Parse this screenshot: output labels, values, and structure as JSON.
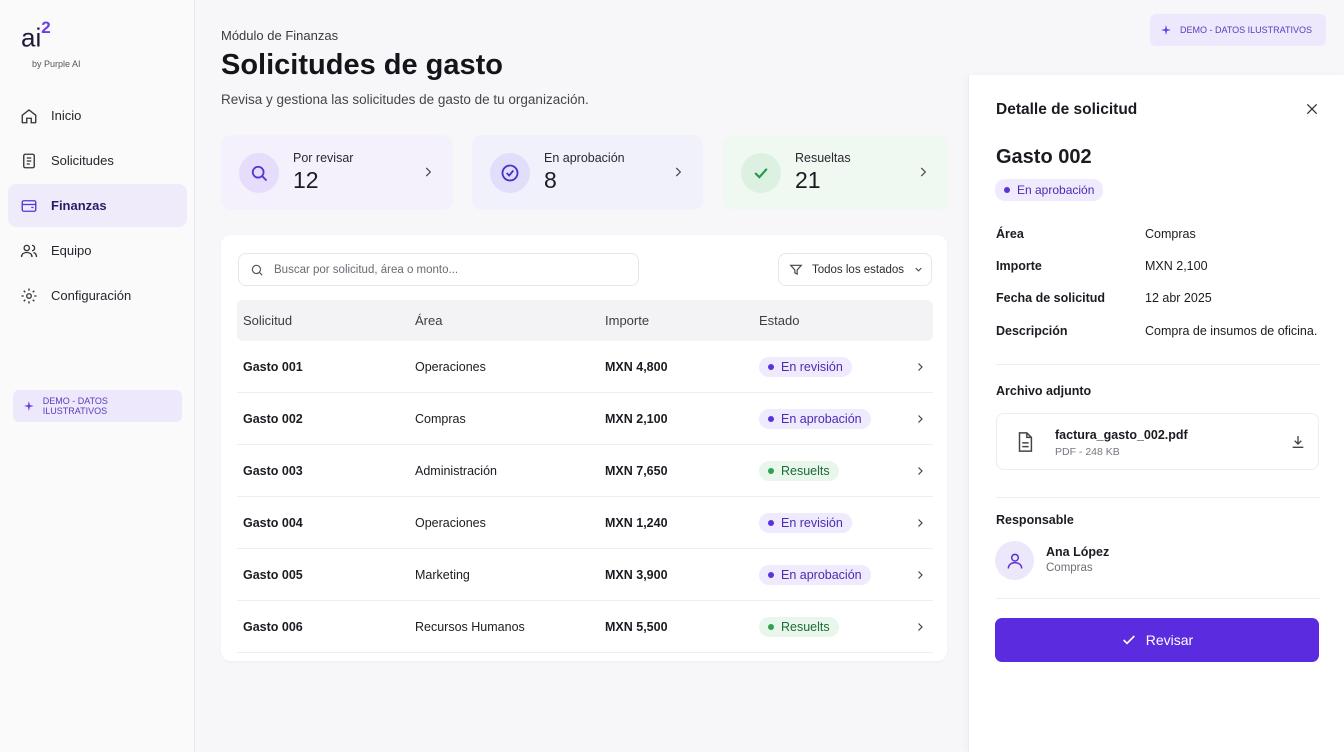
{
  "sidebar": {
    "logo": "ai",
    "logo_sup": "2",
    "byline": "by Purple AI",
    "nav": [
      "Inicio",
      "Solicitudes",
      "Finanzas",
      "Equipo",
      "Configuración"
    ],
    "badge": "DEMO - DATOS ILUSTRATIVOS"
  },
  "header": {
    "eyebrow": "Módulo de Finanzas",
    "title": "Solicitudes de gasto",
    "subtitle": "Revisa y gestiona las solicitudes de gasto de tu organización.",
    "badge": "DEMO - DATOS ILUSTRATIVOS"
  },
  "stats": [
    {
      "label": "Por revisar",
      "value": 12
    },
    {
      "label": "En aprobación",
      "value": 8
    },
    {
      "label": "Resueltas",
      "value": 21
    }
  ],
  "table": {
    "search_placeholder": "Buscar por solicitud, área o monto...",
    "filter": "Todos los estados",
    "columns": [
      "Solicitud",
      "Área",
      "Importe",
      "Estado"
    ],
    "rows": [
      [
        "Gasto 001",
        "Operaciones",
        "MXN 4,800",
        "En revisión"
      ],
      [
        "Gasto 002",
        "Compras",
        "MXN 2,100",
        "En aprobación"
      ],
      [
        "Gasto 003",
        "Administración",
        "MXN 7,650",
        "Resuelts"
      ],
      [
        "Gasto 004",
        "Operaciones",
        "MXN 1,240",
        "En revisión"
      ],
      [
        "Gasto 005",
        "Marketing",
        "MXN 3,900",
        "En aprobación"
      ],
      [
        "Gasto 006",
        "Recursos Humanos",
        "MXN 5,500",
        "Resuelts"
      ]
    ]
  },
  "detail": {
    "heading": "Detalle de solicitud",
    "name": "Gasto 002",
    "status": "En aprobación",
    "fields": [
      {
        "label": "Área",
        "value": "Compras"
      },
      {
        "label": "Importe",
        "value": "MXN 2,100"
      },
      {
        "label": "Fecha de solicitud",
        "value": "12 abr 2025"
      },
      {
        "label": "Descripción",
        "value": "Compra de insumos de oficina."
      }
    ],
    "attachment_heading": "Archivo adjunto",
    "file_name": "factura_gasto_002.pdf",
    "file_meta": "PDF - 248 KB",
    "responsible_heading": "Responsable",
    "person_name": "Ana López",
    "person_area": "Compras",
    "button": "Revisar"
  }
}
